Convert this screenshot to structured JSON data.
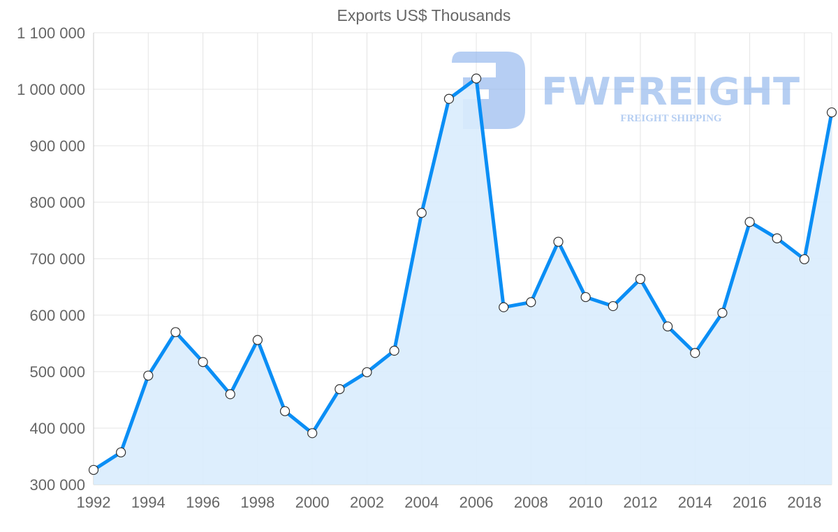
{
  "chart_data": {
    "type": "line",
    "title": "Exports US$ Thousands",
    "xlabel": "",
    "ylabel": "",
    "x": [
      1992,
      1993,
      1994,
      1995,
      1996,
      1997,
      1998,
      1999,
      2000,
      2001,
      2002,
      2003,
      2004,
      2005,
      2006,
      2007,
      2008,
      2009,
      2010,
      2011,
      2012,
      2013,
      2014,
      2015,
      2016,
      2017,
      2018,
      2019
    ],
    "series": [
      {
        "name": "Exports US$ Thousands",
        "values": [
          326000,
          357000,
          493000,
          570000,
          517000,
          460000,
          556000,
          430000,
          391000,
          469000,
          499000,
          537000,
          781000,
          983000,
          1019000,
          614000,
          623000,
          730000,
          632000,
          616000,
          664000,
          580000,
          533000,
          604000,
          765000,
          736000,
          699000,
          959000
        ]
      }
    ],
    "ylim": [
      300000,
      1100000
    ],
    "xlim": [
      1992,
      2019
    ],
    "y_ticks": [
      "300 000",
      "400 000",
      "500 000",
      "600 000",
      "700 000",
      "800 000",
      "900 000",
      "1 000 000",
      "1 100 000"
    ],
    "x_ticks": [
      "1992",
      "1994",
      "1996",
      "1998",
      "2000",
      "2002",
      "2004",
      "2006",
      "2008",
      "2010",
      "2012",
      "2014",
      "2016",
      "2018"
    ],
    "grid": true,
    "fill": true,
    "colors": {
      "line": "#0a8ef5",
      "fill": "#d9ecfd",
      "grid": "#e4e4e4",
      "watermark": "#8fb4ec"
    }
  },
  "watermark": {
    "brand": "FWFREIGHT",
    "tagline": "FREIGHT SHIPPING"
  }
}
